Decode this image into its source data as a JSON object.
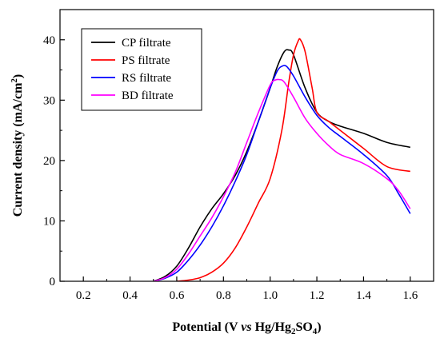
{
  "chart_data": {
    "type": "line",
    "title": "",
    "xlabel": {
      "main": "Potential (V ",
      "italic": "vs",
      "rest": " Hg/Hg",
      "sub1": "2",
      "mid": "SO",
      "sub2": "4",
      "end": ")"
    },
    "ylabel": {
      "main": "Current density (mA/cm",
      "sup": "2",
      "end": ")"
    },
    "xlim": [
      0.1,
      1.7
    ],
    "ylim": [
      0,
      45
    ],
    "xticks": [
      0.2,
      0.4,
      0.6,
      0.8,
      1.0,
      1.2,
      1.4,
      1.6
    ],
    "xtick_labels": [
      "0.2",
      "0.4",
      "0.6",
      "0.8",
      "1.0",
      "1.2",
      "1.4",
      "1.6"
    ],
    "yticks": [
      0,
      10,
      20,
      30,
      40
    ],
    "ytick_labels": [
      "0",
      "10",
      "20",
      "30",
      "40"
    ],
    "grid": false,
    "legend_position": "top-left",
    "series": [
      {
        "name": "CP filtrate",
        "color": "#000000",
        "x": [
          0.5,
          0.55,
          0.6,
          0.65,
          0.7,
          0.75,
          0.8,
          0.85,
          0.9,
          0.95,
          1.0,
          1.03,
          1.06,
          1.08,
          1.1,
          1.15,
          1.2,
          1.25,
          1.3,
          1.4,
          1.5,
          1.6
        ],
        "y": [
          0.0,
          0.8,
          2.5,
          5.5,
          9.0,
          12.0,
          14.5,
          17.5,
          21.5,
          26.5,
          32.0,
          35.5,
          38.0,
          38.3,
          37.5,
          32.0,
          28.0,
          26.5,
          25.7,
          24.5,
          23.0,
          22.2
        ]
      },
      {
        "name": "PS filtrate",
        "color": "#ff0000",
        "x": [
          0.6,
          0.65,
          0.7,
          0.75,
          0.8,
          0.85,
          0.9,
          0.95,
          1.0,
          1.05,
          1.08,
          1.1,
          1.12,
          1.13,
          1.15,
          1.18,
          1.2,
          1.25,
          1.3,
          1.4,
          1.5,
          1.6
        ],
        "y": [
          0.0,
          0.2,
          0.6,
          1.5,
          3.0,
          5.5,
          9.0,
          13.0,
          17.0,
          25.0,
          33.0,
          37.5,
          39.8,
          40.0,
          38.0,
          32.0,
          28.0,
          26.5,
          25.0,
          22.0,
          19.0,
          18.2
        ]
      },
      {
        "name": "RS filtrate",
        "color": "#0000ff",
        "x": [
          0.5,
          0.55,
          0.6,
          0.65,
          0.7,
          0.75,
          0.8,
          0.85,
          0.9,
          0.95,
          1.0,
          1.03,
          1.05,
          1.07,
          1.1,
          1.15,
          1.2,
          1.25,
          1.3,
          1.4,
          1.5,
          1.55,
          1.6
        ],
        "y": [
          0.0,
          0.5,
          1.5,
          3.5,
          6.0,
          9.0,
          12.5,
          16.5,
          21.0,
          26.5,
          32.0,
          34.8,
          35.6,
          35.6,
          34.0,
          30.5,
          27.5,
          25.5,
          24.0,
          21.0,
          17.5,
          14.5,
          11.2
        ]
      },
      {
        "name": "BD filtrate",
        "color": "#ff00ff",
        "x": [
          0.5,
          0.55,
          0.6,
          0.65,
          0.7,
          0.75,
          0.8,
          0.85,
          0.9,
          0.95,
          1.0,
          1.02,
          1.04,
          1.06,
          1.1,
          1.15,
          1.2,
          1.25,
          1.3,
          1.4,
          1.5,
          1.55,
          1.6
        ],
        "y": [
          0.0,
          0.6,
          2.0,
          4.5,
          7.5,
          10.5,
          14.0,
          18.0,
          23.0,
          28.0,
          32.5,
          33.3,
          33.4,
          33.0,
          30.5,
          27.0,
          24.5,
          22.5,
          21.0,
          19.5,
          17.0,
          15.0,
          12.0
        ]
      }
    ]
  }
}
